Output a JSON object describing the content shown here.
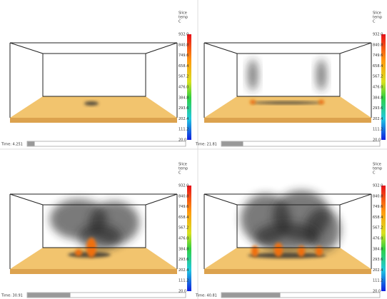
{
  "panels": [
    {
      "legend": {
        "title": [
          "Slice",
          "temp",
          "C"
        ],
        "ticks": [
          "932.0",
          "840.8",
          "749.6",
          "658.4",
          "567.2",
          "476.0",
          "384.8",
          "293.6",
          "202.4",
          "111.2",
          "20.0"
        ]
      },
      "time": "Time: 4.251"
    },
    {
      "legend": {
        "title": [
          "Slice",
          "temp",
          "C"
        ],
        "ticks": [
          "932.0",
          "840.8",
          "749.6",
          "658.4",
          "567.2",
          "476.0",
          "384.8",
          "293.6",
          "202.4",
          "111.2",
          "20.0"
        ]
      },
      "time": "Time: 21.81"
    },
    {
      "legend": {
        "title": [
          "Slice",
          "temp",
          "C"
        ],
        "ticks": [
          "932.0",
          "840.8",
          "749.6",
          "658.4",
          "567.2",
          "476.0",
          "384.8",
          "293.6",
          "202.4",
          "111.2",
          "20.0"
        ]
      },
      "time": "Time: 30.91"
    },
    {
      "legend": {
        "title": [
          "Slice",
          "temp",
          "C"
        ],
        "ticks": [
          "932.0",
          "840.8",
          "749.6",
          "658.4",
          "567.2",
          "476.0",
          "384.8",
          "293.6",
          "202.4",
          "111.2",
          "20.0"
        ]
      },
      "time": "Time: 40.81"
    }
  ]
}
